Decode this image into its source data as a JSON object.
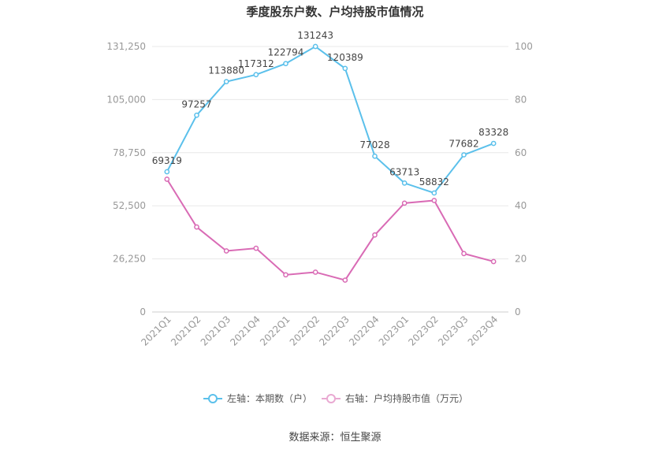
{
  "chart_data": {
    "type": "line",
    "title": "季度股东户数、户均持股市值情况",
    "categories": [
      "2021Q1",
      "2021Q2",
      "2021Q3",
      "2021Q4",
      "2022Q1",
      "2022Q2",
      "2022Q3",
      "2022Q4",
      "2023Q1",
      "2023Q2",
      "2023Q3",
      "2023Q4"
    ],
    "left_axis": {
      "ylim": [
        0,
        131250
      ],
      "ticks": [
        "0",
        "26,250",
        "52,500",
        "78,750",
        "105,000",
        "131,250"
      ]
    },
    "right_axis": {
      "ylim": [
        0,
        100
      ],
      "ticks": [
        "0",
        "20",
        "40",
        "60",
        "80",
        "100"
      ]
    },
    "series": [
      {
        "name": "左轴：本期数（户）",
        "axis": "left",
        "color": "#5bc0eb",
        "values": [
          69319,
          97257,
          113880,
          117312,
          122794,
          131243,
          120389,
          77028,
          63713,
          58832,
          77682,
          83328
        ],
        "labels": [
          "69319",
          "97257",
          "113880",
          "117312",
          "122794",
          "131243",
          "120389",
          "77028",
          "63713",
          "58832",
          "77682",
          "83328"
        ]
      },
      {
        "name": "右轴：户均持股市值（万元）",
        "axis": "right",
        "color": "#d96bb5",
        "values": [
          50,
          32,
          23,
          24,
          14,
          15,
          12,
          29,
          41,
          42,
          22,
          19
        ]
      }
    ],
    "grid": true,
    "legend_position": "bottom"
  },
  "source": "数据来源：恒生聚源"
}
